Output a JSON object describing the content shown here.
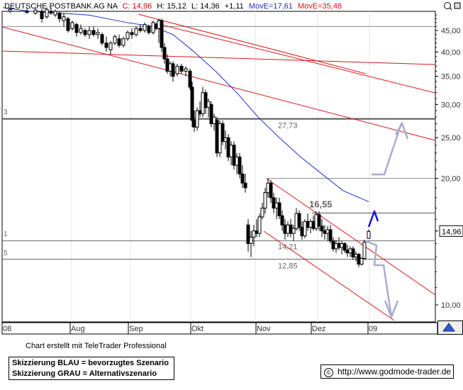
{
  "header": {
    "name": "DEUTSCHE POSTBANK AG NA",
    "close": "C: 14,96",
    "high": "H: 15,12",
    "low": "L: 14,36",
    "change": "+1,11",
    "move_blue": "MovE=17,61",
    "move_red": "MovE=35,48"
  },
  "chart_data": {
    "type": "candlestick",
    "title": "DEUTSCHE POSTBANK AG NA",
    "y_scale": "log",
    "ylim": [
      8.5,
      50
    ],
    "y_ticks": [
      {
        "value": 10,
        "label": "10,00"
      },
      {
        "value": 15,
        "label": "15,00"
      },
      {
        "value": 20,
        "label": "20,00"
      },
      {
        "value": 25,
        "label": "25,00"
      },
      {
        "value": 30,
        "label": "30,00"
      },
      {
        "value": 35,
        "label": "35,00"
      },
      {
        "value": 40,
        "label": "40,00"
      },
      {
        "value": 45,
        "label": "45,00"
      }
    ],
    "x_ticks": [
      "08",
      "Aug",
      "Sep",
      "Okt",
      "Nov",
      "Dez",
      "09"
    ],
    "current_price_label": "14,96",
    "horizontal_levels": [
      {
        "value": 46.0,
        "label": ""
      },
      {
        "value": 27.73,
        "label": "27,73"
      },
      {
        "value": 20.0,
        "label": ""
      },
      {
        "value": 16.55,
        "label": "16,55"
      },
      {
        "value": 14.21,
        "label": "14,21"
      },
      {
        "value": 12.85,
        "label": "12,85"
      }
    ],
    "left_edge_labels": [
      "3",
      "1",
      "5"
    ],
    "moving_average_blue": [
      {
        "x": 0,
        "y": 51.0
      },
      {
        "x": 38,
        "y": 50.0
      },
      {
        "x": 120,
        "y": 49.0
      },
      {
        "x": 175,
        "y": 47.0
      },
      {
        "x": 212,
        "y": 46.0
      },
      {
        "x": 240,
        "y": 44.0
      },
      {
        "x": 270,
        "y": 40.0
      },
      {
        "x": 300,
        "y": 36.0
      },
      {
        "x": 330,
        "y": 32.0
      },
      {
        "x": 360,
        "y": 28.0
      },
      {
        "x": 390,
        "y": 25.0
      },
      {
        "x": 420,
        "y": 22.5
      },
      {
        "x": 450,
        "y": 20.5
      },
      {
        "x": 480,
        "y": 18.7
      },
      {
        "x": 516,
        "y": 17.61
      }
    ],
    "ohlc": [
      {
        "x": 10,
        "o": 50.0,
        "h": 51.0,
        "l": 49.5,
        "c": 50.5
      },
      {
        "x": 34,
        "o": 50.0,
        "h": 50.8,
        "l": 49.3,
        "c": 49.7
      },
      {
        "x": 46,
        "o": 49.5,
        "h": 51.0,
        "l": 49.0,
        "c": 50.3
      },
      {
        "x": 55,
        "o": 50.0,
        "h": 50.7,
        "l": 47.0,
        "c": 48.0
      },
      {
        "x": 62,
        "o": 48.5,
        "h": 51.0,
        "l": 48.0,
        "c": 50.5
      },
      {
        "x": 68,
        "o": 50.0,
        "h": 51.0,
        "l": 49.0,
        "c": 49.5
      },
      {
        "x": 74,
        "o": 49.0,
        "h": 50.5,
        "l": 48.5,
        "c": 50.0
      },
      {
        "x": 80,
        "o": 49.5,
        "h": 50.0,
        "l": 47.0,
        "c": 48.0
      },
      {
        "x": 86,
        "o": 47.5,
        "h": 49.5,
        "l": 46.0,
        "c": 48.5
      },
      {
        "x": 92,
        "o": 48.0,
        "h": 48.5,
        "l": 44.5,
        "c": 45.0
      },
      {
        "x": 98,
        "o": 45.5,
        "h": 47.5,
        "l": 45.0,
        "c": 47.0
      },
      {
        "x": 104,
        "o": 46.5,
        "h": 47.0,
        "l": 43.5,
        "c": 44.5
      },
      {
        "x": 110,
        "o": 44.5,
        "h": 46.5,
        "l": 44.0,
        "c": 45.5
      },
      {
        "x": 116,
        "o": 45.0,
        "h": 45.5,
        "l": 43.5,
        "c": 44.0
      },
      {
        "x": 122,
        "o": 44.0,
        "h": 46.0,
        "l": 43.0,
        "c": 45.0
      },
      {
        "x": 128,
        "o": 45.0,
        "h": 46.0,
        "l": 43.5,
        "c": 44.0
      },
      {
        "x": 134,
        "o": 44.0,
        "h": 45.5,
        "l": 43.0,
        "c": 44.5
      },
      {
        "x": 140,
        "o": 44.0,
        "h": 44.5,
        "l": 41.5,
        "c": 42.0
      },
      {
        "x": 146,
        "o": 42.0,
        "h": 43.5,
        "l": 40.0,
        "c": 41.0
      },
      {
        "x": 152,
        "o": 40.5,
        "h": 42.5,
        "l": 39.5,
        "c": 42.0
      },
      {
        "x": 158,
        "o": 42.0,
        "h": 44.0,
        "l": 41.5,
        "c": 43.5
      },
      {
        "x": 164,
        "o": 43.0,
        "h": 44.0,
        "l": 41.0,
        "c": 41.5
      },
      {
        "x": 170,
        "o": 41.5,
        "h": 43.5,
        "l": 41.0,
        "c": 43.0
      },
      {
        "x": 176,
        "o": 43.0,
        "h": 45.0,
        "l": 42.5,
        "c": 44.5
      },
      {
        "x": 182,
        "o": 44.5,
        "h": 45.5,
        "l": 43.0,
        "c": 44.0
      },
      {
        "x": 188,
        "o": 44.0,
        "h": 46.0,
        "l": 43.5,
        "c": 45.5
      },
      {
        "x": 194,
        "o": 45.5,
        "h": 46.5,
        "l": 44.5,
        "c": 45.0
      },
      {
        "x": 200,
        "o": 45.0,
        "h": 47.0,
        "l": 44.5,
        "c": 46.5
      },
      {
        "x": 206,
        "o": 46.0,
        "h": 46.5,
        "l": 44.0,
        "c": 44.5
      },
      {
        "x": 212,
        "o": 44.5,
        "h": 47.5,
        "l": 44.0,
        "c": 47.0
      },
      {
        "x": 216,
        "o": 46.5,
        "h": 47.0,
        "l": 45.0,
        "c": 45.5
      },
      {
        "x": 220,
        "o": 45.5,
        "h": 48.0,
        "l": 42.0,
        "c": 47.5
      },
      {
        "x": 224,
        "o": 47.5,
        "h": 48.0,
        "l": 40.0,
        "c": 41.0
      },
      {
        "x": 228,
        "o": 41.0,
        "h": 42.0,
        "l": 37.5,
        "c": 38.5
      },
      {
        "x": 232,
        "o": 38.5,
        "h": 39.5,
        "l": 35.5,
        "c": 36.0
      },
      {
        "x": 236,
        "o": 36.0,
        "h": 38.0,
        "l": 35.0,
        "c": 37.5
      },
      {
        "x": 240,
        "o": 37.5,
        "h": 38.0,
        "l": 34.0,
        "c": 35.0
      },
      {
        "x": 246,
        "o": 35.5,
        "h": 37.5,
        "l": 35.0,
        "c": 37.0
      },
      {
        "x": 252,
        "o": 37.0,
        "h": 37.5,
        "l": 35.5,
        "c": 36.0
      },
      {
        "x": 258,
        "o": 36.0,
        "h": 37.0,
        "l": 35.0,
        "c": 36.5
      },
      {
        "x": 264,
        "o": 36.0,
        "h": 36.5,
        "l": 32.5,
        "c": 33.0
      },
      {
        "x": 267,
        "o": 33.0,
        "h": 34.0,
        "l": 26.5,
        "c": 27.5
      },
      {
        "x": 270,
        "o": 27.5,
        "h": 29.0,
        "l": 25.8,
        "c": 26.5
      },
      {
        "x": 274,
        "o": 26.5,
        "h": 29.5,
        "l": 26.0,
        "c": 29.0
      },
      {
        "x": 278,
        "o": 29.0,
        "h": 30.5,
        "l": 28.0,
        "c": 28.5
      },
      {
        "x": 282,
        "o": 28.5,
        "h": 33.0,
        "l": 28.0,
        "c": 32.0
      },
      {
        "x": 286,
        "o": 32.0,
        "h": 32.5,
        "l": 28.5,
        "c": 29.5
      },
      {
        "x": 290,
        "o": 29.5,
        "h": 31.0,
        "l": 28.0,
        "c": 30.5
      },
      {
        "x": 294,
        "o": 30.0,
        "h": 30.5,
        "l": 26.5,
        "c": 27.0
      },
      {
        "x": 298,
        "o": 27.0,
        "h": 28.5,
        "l": 26.0,
        "c": 28.0
      },
      {
        "x": 302,
        "o": 27.5,
        "h": 28.0,
        "l": 22.5,
        "c": 23.0
      },
      {
        "x": 306,
        "o": 23.0,
        "h": 27.5,
        "l": 22.5,
        "c": 27.0
      },
      {
        "x": 310,
        "o": 27.0,
        "h": 27.5,
        "l": 24.0,
        "c": 24.5
      },
      {
        "x": 314,
        "o": 24.5,
        "h": 26.0,
        "l": 23.5,
        "c": 25.0
      },
      {
        "x": 318,
        "o": 25.0,
        "h": 25.5,
        "l": 22.0,
        "c": 22.5
      },
      {
        "x": 322,
        "o": 22.5,
        "h": 24.5,
        "l": 21.5,
        "c": 24.0
      },
      {
        "x": 326,
        "o": 24.0,
        "h": 24.5,
        "l": 21.0,
        "c": 21.5
      },
      {
        "x": 330,
        "o": 21.5,
        "h": 23.0,
        "l": 20.5,
        "c": 22.5
      },
      {
        "x": 334,
        "o": 22.5,
        "h": 23.0,
        "l": 20.0,
        "c": 20.5
      },
      {
        "x": 338,
        "o": 20.5,
        "h": 21.5,
        "l": 19.0,
        "c": 19.5
      },
      {
        "x": 342,
        "o": 19.5,
        "h": 20.5,
        "l": 18.5,
        "c": 19.0
      },
      {
        "x": 346,
        "o": 15.5,
        "h": 16.0,
        "l": 13.4,
        "c": 14.0
      },
      {
        "x": 350,
        "o": 14.0,
        "h": 15.0,
        "l": 13.0,
        "c": 14.5
      },
      {
        "x": 354,
        "o": 14.5,
        "h": 15.5,
        "l": 13.8,
        "c": 15.0
      },
      {
        "x": 358,
        "o": 15.0,
        "h": 16.0,
        "l": 14.5,
        "c": 14.8
      },
      {
        "x": 362,
        "o": 14.8,
        "h": 16.5,
        "l": 14.5,
        "c": 16.2
      },
      {
        "x": 366,
        "o": 16.2,
        "h": 17.5,
        "l": 16.0,
        "c": 17.0
      },
      {
        "x": 370,
        "o": 17.0,
        "h": 19.0,
        "l": 16.5,
        "c": 18.5
      },
      {
        "x": 374,
        "o": 18.5,
        "h": 20.0,
        "l": 18.0,
        "c": 19.5
      },
      {
        "x": 378,
        "o": 19.5,
        "h": 19.8,
        "l": 17.5,
        "c": 18.0
      },
      {
        "x": 382,
        "o": 18.0,
        "h": 18.5,
        "l": 16.5,
        "c": 17.0
      },
      {
        "x": 386,
        "o": 17.0,
        "h": 18.0,
        "l": 16.0,
        "c": 17.5
      },
      {
        "x": 390,
        "o": 17.5,
        "h": 18.0,
        "l": 16.0,
        "c": 16.3
      },
      {
        "x": 394,
        "o": 16.3,
        "h": 16.8,
        "l": 15.0,
        "c": 15.5
      },
      {
        "x": 398,
        "o": 15.5,
        "h": 16.0,
        "l": 14.3,
        "c": 14.8
      },
      {
        "x": 402,
        "o": 14.8,
        "h": 15.8,
        "l": 14.5,
        "c": 15.5
      },
      {
        "x": 406,
        "o": 15.5,
        "h": 16.0,
        "l": 14.5,
        "c": 14.8
      },
      {
        "x": 410,
        "o": 14.8,
        "h": 15.5,
        "l": 14.2,
        "c": 15.2
      },
      {
        "x": 414,
        "o": 15.2,
        "h": 17.0,
        "l": 15.0,
        "c": 16.5
      },
      {
        "x": 418,
        "o": 16.5,
        "h": 16.8,
        "l": 15.0,
        "c": 15.3
      },
      {
        "x": 422,
        "o": 15.3,
        "h": 15.8,
        "l": 14.3,
        "c": 14.6
      },
      {
        "x": 426,
        "o": 14.6,
        "h": 16.0,
        "l": 14.4,
        "c": 15.8
      },
      {
        "x": 430,
        "o": 15.8,
        "h": 16.5,
        "l": 15.0,
        "c": 15.3
      },
      {
        "x": 434,
        "o": 15.3,
        "h": 16.0,
        "l": 14.8,
        "c": 15.8
      },
      {
        "x": 438,
        "o": 15.8,
        "h": 16.3,
        "l": 15.0,
        "c": 15.2
      },
      {
        "x": 442,
        "o": 15.2,
        "h": 16.7,
        "l": 15.0,
        "c": 16.4
      },
      {
        "x": 446,
        "o": 16.4,
        "h": 16.7,
        "l": 15.0,
        "c": 15.4
      },
      {
        "x": 450,
        "o": 15.4,
        "h": 16.0,
        "l": 14.5,
        "c": 15.0
      },
      {
        "x": 454,
        "o": 15.0,
        "h": 15.5,
        "l": 14.3,
        "c": 14.8
      },
      {
        "x": 458,
        "o": 14.8,
        "h": 15.4,
        "l": 14.2,
        "c": 15.1
      },
      {
        "x": 462,
        "o": 15.1,
        "h": 15.5,
        "l": 14.0,
        "c": 14.2
      },
      {
        "x": 466,
        "o": 14.2,
        "h": 14.5,
        "l": 13.4,
        "c": 13.6
      },
      {
        "x": 470,
        "o": 13.6,
        "h": 14.3,
        "l": 13.3,
        "c": 14.0
      },
      {
        "x": 474,
        "o": 14.0,
        "h": 14.5,
        "l": 13.5,
        "c": 13.7
      },
      {
        "x": 478,
        "o": 13.7,
        "h": 14.2,
        "l": 13.2,
        "c": 14.0
      },
      {
        "x": 482,
        "o": 14.0,
        "h": 14.1,
        "l": 13.3,
        "c": 13.5
      },
      {
        "x": 486,
        "o": 13.5,
        "h": 13.9,
        "l": 13.0,
        "c": 13.3
      },
      {
        "x": 490,
        "o": 13.3,
        "h": 13.8,
        "l": 13.0,
        "c": 13.6
      },
      {
        "x": 494,
        "o": 13.6,
        "h": 13.8,
        "l": 12.8,
        "c": 13.0
      },
      {
        "x": 498,
        "o": 13.0,
        "h": 13.4,
        "l": 12.7,
        "c": 13.2
      },
      {
        "x": 502,
        "o": 13.2,
        "h": 13.3,
        "l": 12.3,
        "c": 12.5
      },
      {
        "x": 506,
        "o": 12.5,
        "h": 13.0,
        "l": 12.4,
        "c": 12.9
      },
      {
        "x": 510,
        "o": 12.9,
        "h": 14.3,
        "l": 12.8,
        "c": 14.1
      },
      {
        "x": 516,
        "o": 14.4,
        "h": 15.12,
        "l": 14.36,
        "c": 14.96
      }
    ]
  },
  "footer": {
    "created_with": "Chart erstellt mit TeleTrader Professional",
    "legend_blue": "Skizzierung BLAU = bevorzugtes Szenario",
    "legend_gray": "Skizzierung GRAU = Alternativszenario",
    "url": "http://www.godmode-trader.de",
    "copyright_symbol": "©"
  },
  "colors": {
    "blue_ma": "#1f2fbf",
    "red_ma": "#d31515",
    "red_lines": "#d61a1a",
    "blue_scenario": "#1111cc",
    "gray_scenario": "#a9abd0",
    "grid": "#e6e6e6",
    "level_line": "#555555"
  }
}
